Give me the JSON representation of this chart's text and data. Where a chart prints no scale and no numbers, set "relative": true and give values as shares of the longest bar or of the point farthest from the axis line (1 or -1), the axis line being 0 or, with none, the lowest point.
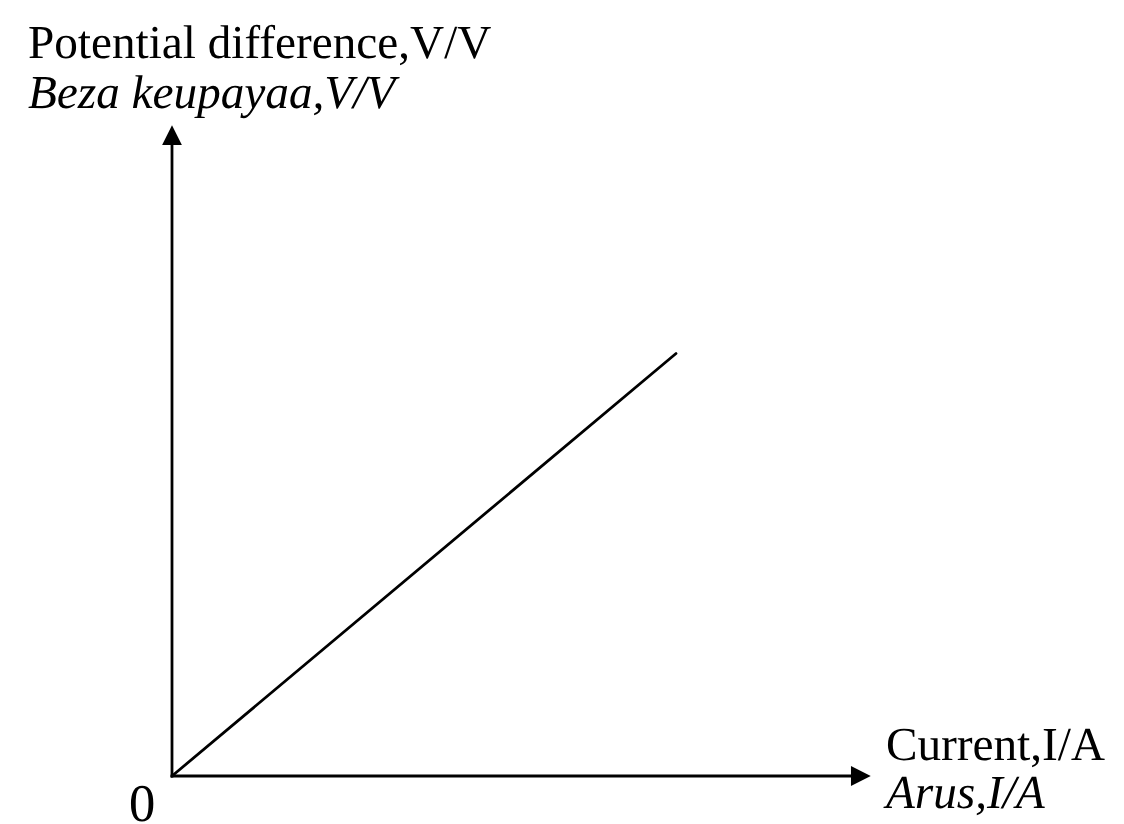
{
  "chart_data": {
    "type": "line",
    "relative": true,
    "xlabel": "Current,I/A\nArus,I/A",
    "ylabel": "Potential difference,V/V\nBeza keupayaa,V/V",
    "categories": [
      null,
      null
    ],
    "series": [
      {
        "color": "#000000",
        "values": [
          0,
          1
        ]
      }
    ],
    "annotations": [
      "0"
    ],
    "marker": "none",
    "line_style": "solid"
  }
}
